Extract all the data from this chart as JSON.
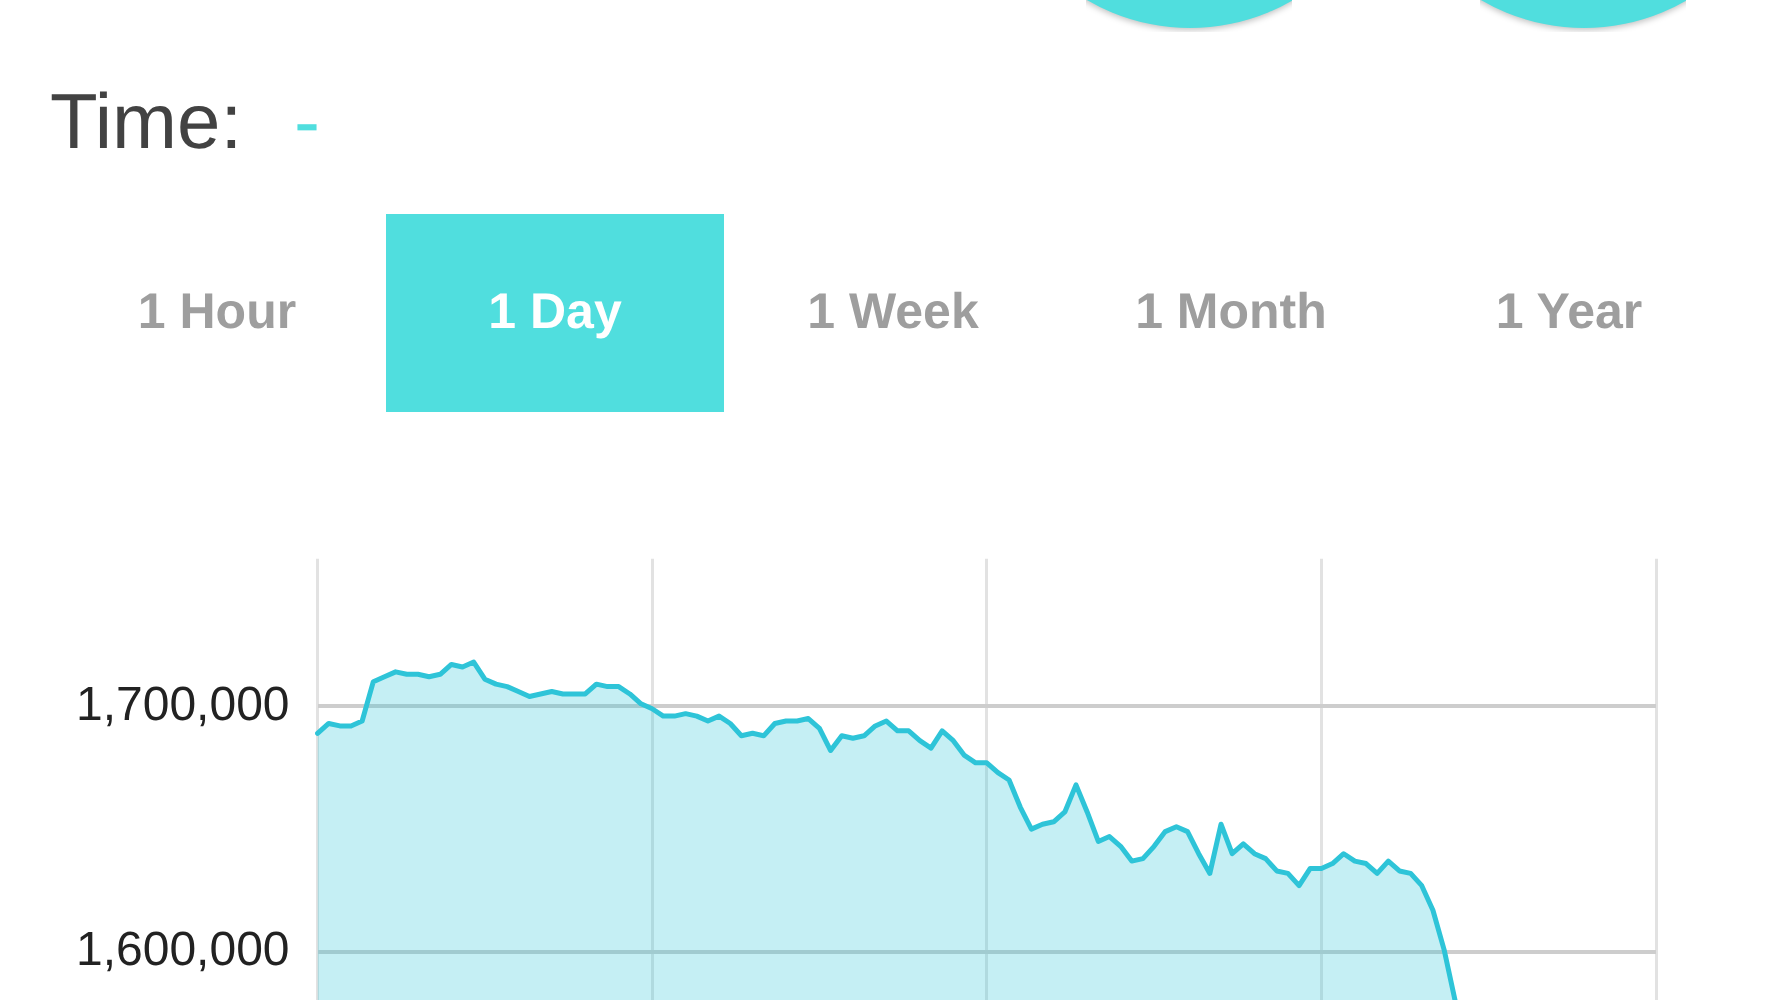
{
  "chart_data": {
    "type": "area",
    "annotations": [
      "Time:",
      "-",
      "1 Hour",
      "1 Day",
      "1 Week",
      "1 Month",
      "1 Year"
    ],
    "categories": [
      null,
      null,
      null,
      null,
      null,
      null,
      null,
      null,
      null,
      null,
      null,
      null,
      null,
      null,
      null,
      null,
      null,
      null,
      null,
      null,
      null,
      null,
      null,
      null,
      null,
      null,
      null,
      null,
      null,
      null,
      null,
      null,
      null,
      null,
      null,
      null,
      null,
      null,
      null,
      null,
      null,
      null,
      null,
      null,
      null,
      null,
      null,
      null,
      null,
      null,
      null,
      null,
      null,
      null,
      null,
      null,
      null,
      null,
      null,
      null,
      null,
      null,
      null,
      null,
      null,
      null,
      null,
      null,
      null,
      null,
      null,
      null,
      null,
      null,
      null,
      null,
      null,
      null,
      null,
      null,
      null,
      null,
      null,
      null,
      null,
      null,
      null,
      null,
      null,
      null,
      null,
      null,
      null,
      null,
      null,
      null,
      null,
      null,
      null,
      null,
      null,
      null,
      null,
      null,
      null,
      null,
      null,
      null,
      null,
      null,
      null,
      null,
      null,
      null,
      null,
      null,
      null,
      null,
      null,
      null,
      null
    ],
    "values": [
      1689000,
      1693000,
      1692000,
      1692000,
      1694000,
      1710000,
      1712000,
      1714000,
      1713000,
      1713000,
      1712000,
      1713000,
      1717000,
      1716000,
      1718000,
      1711000,
      1709000,
      1708000,
      1706000,
      1704000,
      1705000,
      1706000,
      1705000,
      1705000,
      1705000,
      1709000,
      1708000,
      1708000,
      1705000,
      1701000,
      1699000,
      1696000,
      1696000,
      1697000,
      1696000,
      1694000,
      1696000,
      1693000,
      1688000,
      1689000,
      1688000,
      1693000,
      1694000,
      1694000,
      1695000,
      1691000,
      1682000,
      1688000,
      1687000,
      1688000,
      1692000,
      1694000,
      1690000,
      1690000,
      1686000,
      1683000,
      1690000,
      1686000,
      1680000,
      1677000,
      1677000,
      1673000,
      1670000,
      1659000,
      1650000,
      1652000,
      1653000,
      1657000,
      1668000,
      1657000,
      1645000,
      1647000,
      1643000,
      1637000,
      1638000,
      1643000,
      1649000,
      1651000,
      1649000,
      1640000,
      1632000,
      1652000,
      1640000,
      1644000,
      1640000,
      1638000,
      1633000,
      1632000,
      1627000,
      1634000,
      1634000,
      1636000,
      1640000,
      1637000,
      1636000,
      1632000,
      1637000,
      1633000,
      1632000,
      1627000,
      1617000,
      1601000,
      1580000,
      null,
      null,
      null,
      null,
      null,
      null,
      null,
      null,
      null,
      null,
      null,
      null,
      null,
      null,
      null,
      null,
      null,
      null
    ],
    "color": "#2ec4d8",
    "ylim": [
      1580000,
      1760000
    ],
    "yticks": [
      {
        "value": 1600000,
        "label": "1,600,000"
      },
      {
        "value": 1700000,
        "label": "1,700,000"
      }
    ],
    "grid": true,
    "tick_labels": "y"
  }
}
